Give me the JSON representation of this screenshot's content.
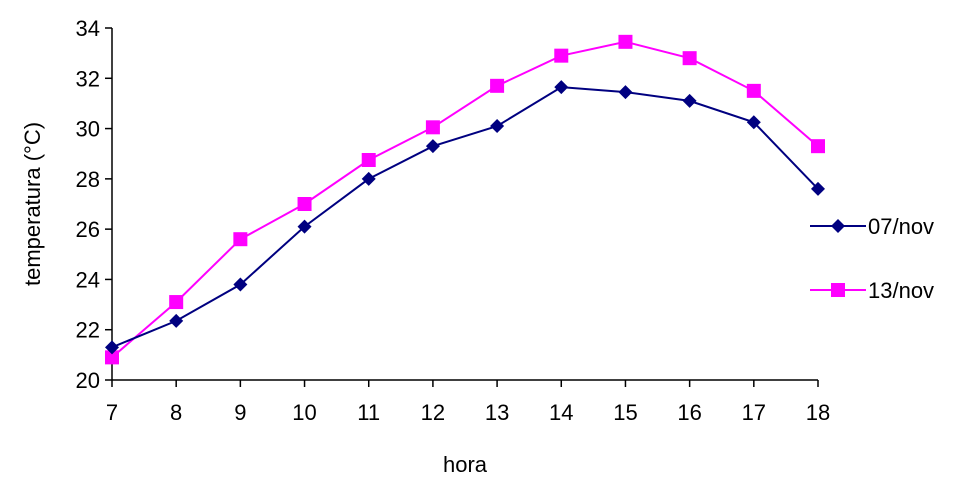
{
  "chart_data": {
    "type": "line",
    "title": "",
    "xlabel": "hora",
    "ylabel": "temperatura (°C)",
    "x": [
      7,
      8,
      9,
      10,
      11,
      12,
      13,
      14,
      15,
      16,
      17,
      18
    ],
    "xticks": [
      "7",
      "8",
      "9",
      "10",
      "11",
      "12",
      "13",
      "14",
      "15",
      "16",
      "17",
      "18"
    ],
    "ylim": [
      20,
      34
    ],
    "yticks": [
      "20",
      "22",
      "24",
      "26",
      "28",
      "30",
      "32",
      "34"
    ],
    "grid": false,
    "legend_position": "right",
    "series": [
      {
        "name": "07/nov",
        "color": "#000080",
        "marker": "diamond",
        "values": [
          21.3,
          22.35,
          23.8,
          26.1,
          28.0,
          29.3,
          30.1,
          31.65,
          31.45,
          31.1,
          30.25,
          27.6
        ]
      },
      {
        "name": "13/nov",
        "color": "#ff00ff",
        "marker": "square",
        "values": [
          20.9,
          23.1,
          25.6,
          27.0,
          28.75,
          30.05,
          31.7,
          32.9,
          33.45,
          32.8,
          31.5,
          29.3
        ]
      }
    ]
  }
}
